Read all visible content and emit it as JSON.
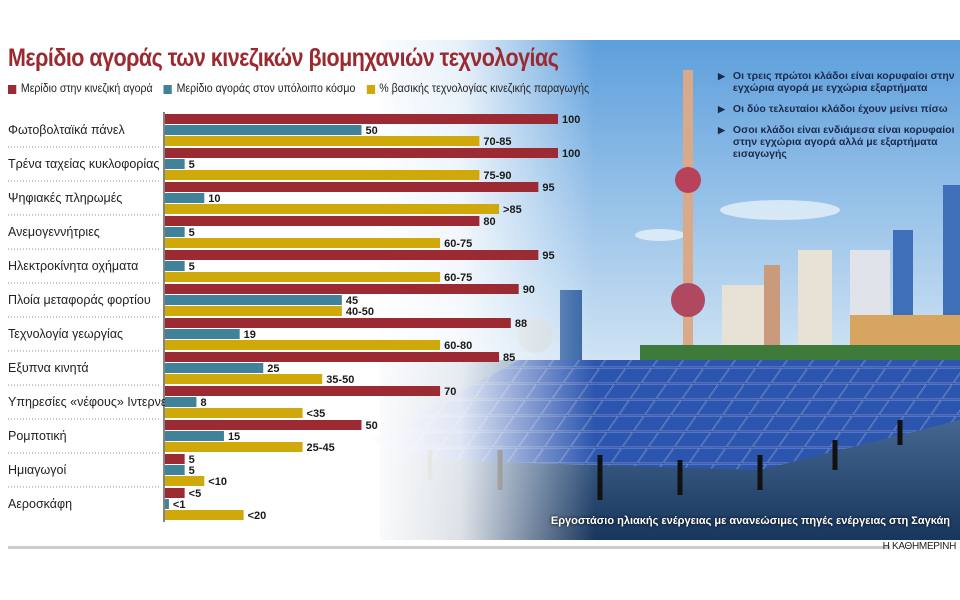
{
  "title": "Μερίδιο αγοράς των κινεζικών βιομηχανιών τεχνολογίας",
  "notes": [
    "Οι τρεις πρώτοι κλάδοι είναι κορυφαίοι στην εγχώρια αγορά με εγχώρια εξαρτήματα",
    "Οι δύο τελευταίοι κλάδοι έχουν μείνει πίσω",
    "Οσοι κλάδοι είναι ενδιάμεσα είναι κορυφαίοι στην εγχώρια αγορά αλλά με εξαρτήματα εισαγωγής"
  ],
  "caption": "Εργοστάσιο ηλιακής ενέργειας με ανανεώσιμες πηγές ενέργειας στη Σαγκάη",
  "brand": "Η ΚΑΘΗΜΕΡΙΝΗ",
  "chart_data": {
    "type": "bar",
    "orientation": "horizontal",
    "title": "Μερίδιο αγοράς των κινεζικών βιομηχανιών τεχνολογίας",
    "xlim": [
      0,
      100
    ],
    "legend_placement": "top-left",
    "categories": [
      "Φωτοβολταϊκά πάνελ",
      "Τρένα ταχείας κυκλοφορίας",
      "Ψηφιακές πληρωμές",
      "Ανεμογεννήτριες",
      "Ηλεκτροκίνητα οχήματα",
      "Πλοία μεταφοράς φορτίου",
      "Τεχνολογία γεωργίας",
      "Εξυπνα κινητά",
      "Υπηρεσίες «νέφους» Ιντερνετ",
      "Ρομποτική",
      "Ημιαγωγοί",
      "Αεροσκάφη"
    ],
    "series": [
      {
        "name": "Μερίδιο στην κινεζική αγορά",
        "color": "#9b2a33",
        "values": [
          100,
          100,
          95,
          80,
          95,
          90,
          88,
          85,
          70,
          50,
          5,
          5
        ],
        "labels": [
          "100",
          "100",
          "95",
          "80",
          "95",
          "90",
          "88",
          "85",
          "70",
          "50",
          "5",
          "<5"
        ]
      },
      {
        "name": "Μερίδιο αγοράς στον υπόλοιπο κόσμο",
        "color": "#3f8299",
        "values": [
          50,
          5,
          10,
          5,
          5,
          45,
          19,
          25,
          8,
          15,
          5,
          1
        ],
        "labels": [
          "50",
          "5",
          "10",
          "5",
          "5",
          "45",
          "19",
          "25",
          "8",
          "15",
          "5",
          "<1"
        ]
      },
      {
        "name": "% βασικής τεχνολογίας κινεζικής παραγωγής",
        "color": "#cfa80a",
        "values": [
          80,
          80,
          85,
          70,
          70,
          45,
          70,
          40,
          35,
          35,
          10,
          20
        ],
        "labels": [
          "70-85",
          "75-90",
          ">85",
          "60-75",
          "60-75",
          "40-50",
          "60-80",
          "35-50",
          "<35",
          "25-45",
          "<10",
          "<20"
        ]
      }
    ]
  }
}
